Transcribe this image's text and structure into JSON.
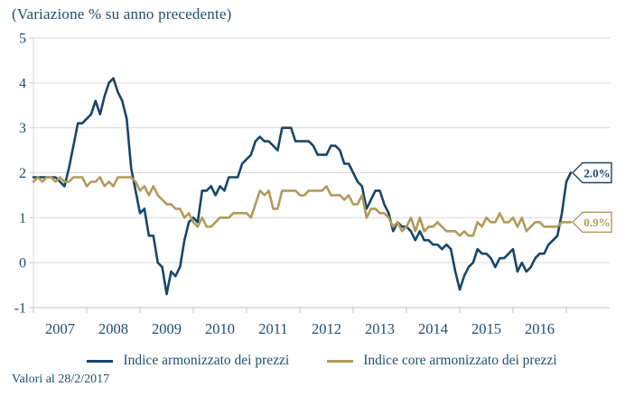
{
  "title": "(Variazione % su anno precedente)",
  "footnote": "Valori al 28/2/2017",
  "colors": {
    "text": "#1F4E6E",
    "grid": "#D9D9D9",
    "axis": "#C2C2C2",
    "headline": "#17466B",
    "core": "#B29A5B"
  },
  "legend": {
    "items": [
      {
        "label": "Indice armonizzato dei prezzi",
        "color": "#17466B"
      },
      {
        "label": "Indice core armonizzato dei prezzi",
        "color": "#B29A5B"
      }
    ]
  },
  "chart_data": {
    "type": "line",
    "title": "(Variazione % su anno precedente)",
    "x_start": "2007-01",
    "x_end": "2017-02",
    "x_tick_labels": [
      "2007",
      "2008",
      "2009",
      "2010",
      "2011",
      "2012",
      "2013",
      "2014",
      "2015",
      "2016"
    ],
    "y_ticks": [
      -1,
      0,
      1,
      2,
      3,
      4,
      5
    ],
    "ylim": [
      -1,
      5
    ],
    "grid": true,
    "legend_position": "bottom",
    "series": [
      {
        "name": "Indice armonizzato dei prezzi",
        "color": "#17466B",
        "end_label": "2.0%",
        "values": [
          1.9,
          1.9,
          1.9,
          1.9,
          1.9,
          1.9,
          1.8,
          1.7,
          2.1,
          2.6,
          3.1,
          3.1,
          3.2,
          3.3,
          3.6,
          3.3,
          3.7,
          4.0,
          4.1,
          3.8,
          3.6,
          3.2,
          2.1,
          1.6,
          1.1,
          1.2,
          0.6,
          0.6,
          0.0,
          -0.1,
          -0.7,
          -0.2,
          -0.3,
          -0.1,
          0.5,
          0.9,
          1.0,
          0.9,
          1.6,
          1.6,
          1.7,
          1.5,
          1.7,
          1.6,
          1.9,
          1.9,
          1.9,
          2.2,
          2.3,
          2.4,
          2.7,
          2.8,
          2.7,
          2.7,
          2.6,
          2.5,
          3.0,
          3.0,
          3.0,
          2.7,
          2.7,
          2.7,
          2.7,
          2.6,
          2.4,
          2.4,
          2.4,
          2.6,
          2.6,
          2.5,
          2.2,
          2.2,
          2.0,
          1.8,
          1.7,
          1.2,
          1.4,
          1.6,
          1.6,
          1.3,
          1.1,
          0.7,
          0.9,
          0.8,
          0.8,
          0.7,
          0.5,
          0.7,
          0.5,
          0.5,
          0.4,
          0.4,
          0.3,
          0.4,
          0.3,
          -0.2,
          -0.6,
          -0.3,
          -0.1,
          0.0,
          0.3,
          0.2,
          0.2,
          0.1,
          -0.1,
          0.1,
          0.1,
          0.2,
          0.3,
          -0.2,
          0.0,
          -0.2,
          -0.1,
          0.1,
          0.2,
          0.2,
          0.4,
          0.5,
          0.6,
          1.1,
          1.8,
          2.0
        ]
      },
      {
        "name": "Indice core armonizzato dei prezzi",
        "color": "#B29A5B",
        "end_label": "0.9%",
        "values": [
          1.8,
          1.9,
          1.8,
          1.9,
          1.9,
          1.8,
          1.9,
          1.8,
          1.8,
          1.9,
          1.9,
          1.9,
          1.7,
          1.8,
          1.8,
          1.9,
          1.7,
          1.8,
          1.7,
          1.9,
          1.9,
          1.9,
          1.9,
          1.8,
          1.6,
          1.7,
          1.5,
          1.7,
          1.5,
          1.4,
          1.3,
          1.3,
          1.2,
          1.2,
          1.0,
          1.1,
          0.9,
          0.8,
          1.0,
          0.8,
          0.8,
          0.9,
          1.0,
          1.0,
          1.0,
          1.1,
          1.1,
          1.1,
          1.1,
          1.0,
          1.3,
          1.6,
          1.5,
          1.6,
          1.2,
          1.2,
          1.6,
          1.6,
          1.6,
          1.6,
          1.5,
          1.5,
          1.6,
          1.6,
          1.6,
          1.6,
          1.7,
          1.5,
          1.5,
          1.5,
          1.4,
          1.5,
          1.3,
          1.3,
          1.5,
          1.0,
          1.2,
          1.2,
          1.1,
          1.1,
          1.0,
          0.8,
          0.9,
          0.7,
          0.8,
          1.0,
          0.7,
          1.0,
          0.7,
          0.8,
          0.8,
          0.9,
          0.8,
          0.7,
          0.7,
          0.7,
          0.6,
          0.7,
          0.6,
          0.6,
          0.9,
          0.8,
          1.0,
          0.9,
          0.9,
          1.1,
          0.9,
          0.9,
          1.0,
          0.8,
          1.0,
          0.7,
          0.8,
          0.9,
          0.9,
          0.8,
          0.8,
          0.8,
          0.8,
          0.9,
          0.9,
          0.9
        ]
      }
    ]
  }
}
